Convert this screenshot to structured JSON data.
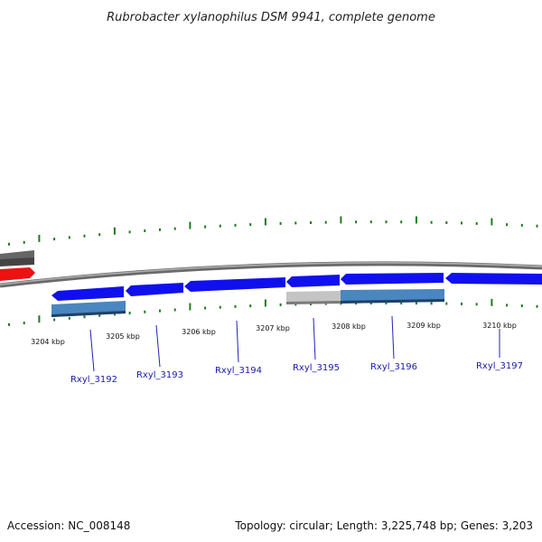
{
  "title": "Rubrobacter xylanophilus DSM 9941, complete genome",
  "footer": {
    "accession": "Accession: NC_008148",
    "stats": "Topology: circular; Length: 3,225,748 bp; Genes: 3,203"
  },
  "scale_labels": [
    "3204 kbp",
    "3205 kbp",
    "3206 kbp",
    "3207 kbp",
    "3208 kbp",
    "3209 kbp",
    "3210 kbp"
  ],
  "gene_labels": [
    "Rxyl_3192",
    "Rxyl_3193",
    "Rxyl_3194",
    "Rxyl_3195",
    "Rxyl_3196",
    "Rxyl_3197"
  ],
  "colors": {
    "cds": "#1010ee",
    "gene_bar": "#4a86c0",
    "gene_bar_grey": "#c4c4c4",
    "highlight": "#ee1111",
    "dark_feature": "#666666",
    "tick": "#1e7a1e",
    "label_line": "#2222bb",
    "backbone": "#808080"
  }
}
